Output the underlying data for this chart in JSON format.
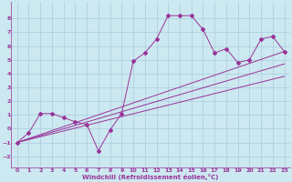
{
  "xlabel": "Windchill (Refroidissement éolien,°C)",
  "bg_color": "#cce8f0",
  "grid_color": "#aacce0",
  "line_color": "#993399",
  "xlim": [
    -0.5,
    23.5
  ],
  "ylim": [
    -2.8,
    9.2
  ],
  "xticks": [
    0,
    1,
    2,
    3,
    4,
    5,
    6,
    7,
    8,
    9,
    10,
    11,
    12,
    13,
    14,
    15,
    16,
    17,
    18,
    19,
    20,
    21,
    22,
    23
  ],
  "yticks": [
    -2,
    -1,
    0,
    1,
    2,
    3,
    4,
    5,
    6,
    7,
    8
  ],
  "series1_x": [
    0,
    1,
    2,
    3,
    4,
    5,
    6,
    7,
    8,
    9,
    10,
    11,
    12,
    13,
    14,
    15,
    16,
    17,
    18,
    19,
    20,
    21,
    22,
    23
  ],
  "series1_y": [
    -1.0,
    -0.3,
    1.1,
    1.1,
    0.8,
    0.5,
    0.3,
    -1.6,
    -0.1,
    1.1,
    4.9,
    5.5,
    6.5,
    8.2,
    8.2,
    8.2,
    7.2,
    5.5,
    5.8,
    4.8,
    5.0,
    6.5,
    6.7,
    5.6
  ],
  "series2_x": [
    0,
    23
  ],
  "series2_y": [
    -1.0,
    5.6
  ],
  "series3_x": [
    0,
    23
  ],
  "series3_y": [
    -1.0,
    3.8
  ],
  "series4_x": [
    0,
    23
  ],
  "series4_y": [
    -1.0,
    4.7
  ]
}
